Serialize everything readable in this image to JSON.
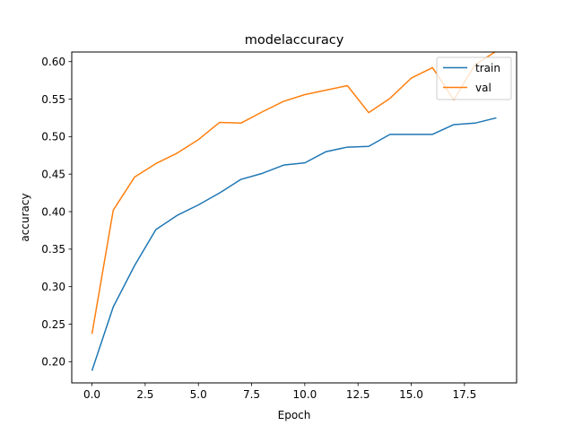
{
  "chart_data": {
    "type": "line",
    "title": "modelaccuracy",
    "xlabel": "Epoch",
    "ylabel": "accuracy",
    "x": [
      0,
      1,
      2,
      3,
      4,
      5,
      6,
      7,
      8,
      9,
      10,
      11,
      12,
      13,
      14,
      15,
      16,
      17,
      18,
      19
    ],
    "series": [
      {
        "name": "train",
        "color": "#1f77b4",
        "values": [
          0.188,
          0.273,
          0.328,
          0.376,
          0.395,
          0.409,
          0.425,
          0.443,
          0.451,
          0.462,
          0.465,
          0.48,
          0.486,
          0.487,
          0.503,
          0.503,
          0.503,
          0.516,
          0.518,
          0.525
        ]
      },
      {
        "name": "val",
        "color": "#ff7f0e",
        "values": [
          0.237,
          0.402,
          0.446,
          0.464,
          0.478,
          0.496,
          0.519,
          0.518,
          0.533,
          0.547,
          0.556,
          0.562,
          0.568,
          0.532,
          0.551,
          0.578,
          0.592,
          0.549,
          0.596,
          0.614
        ]
      }
    ],
    "xlim": [
      -0.95,
      19.95
    ],
    "ylim": [
      0.1717,
      0.6128
    ],
    "xticks": [
      0.0,
      2.5,
      5.0,
      7.5,
      10.0,
      12.5,
      15.0,
      17.5
    ],
    "xtick_labels": [
      "0.0",
      "2.5",
      "5.0",
      "7.5",
      "10.0",
      "12.5",
      "15.0",
      "17.5"
    ],
    "yticks": [
      0.2,
      0.25,
      0.3,
      0.35,
      0.4,
      0.45,
      0.5,
      0.55,
      0.6
    ],
    "ytick_labels": [
      "0.20",
      "0.25",
      "0.30",
      "0.35",
      "0.40",
      "0.45",
      "0.50",
      "0.55",
      "0.60"
    ],
    "grid": false,
    "legend_position": "top-right"
  }
}
